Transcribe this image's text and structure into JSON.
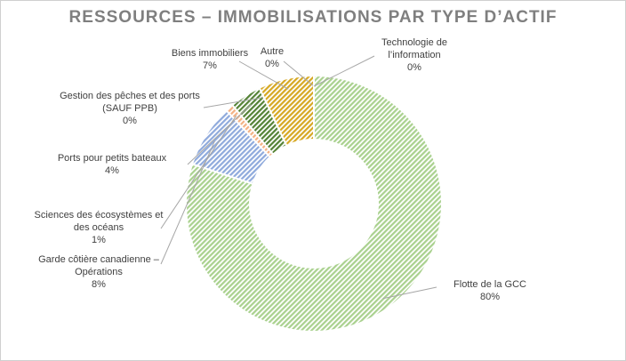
{
  "chart_data": {
    "type": "donut",
    "title": "RESSOURCES – IMMOBILISATIONS PAR TYPE D’ACTIF",
    "categories": [
      "Flotte de la GCC",
      "Garde côtière canadienne – Opérations",
      "Sciences des écosystèmes et des océans",
      "Ports pour petits bateaux",
      "Gestion des pêches et des ports (SAUF PPB)",
      "Biens immobiliers",
      "Autre",
      "Technologie de l’information"
    ],
    "values": [
      80,
      8,
      1,
      4,
      0,
      7,
      0,
      0
    ],
    "value_labels": [
      "80%",
      "8%",
      "1%",
      "4%",
      "0%",
      "7%",
      "0%",
      "0%"
    ],
    "colors": [
      "#a9d18e",
      "#8faadc",
      "#f4b183",
      "#548235",
      "#a5a5a5",
      "#d6a823",
      "#7f7f7f",
      "#5b9bd5"
    ]
  }
}
